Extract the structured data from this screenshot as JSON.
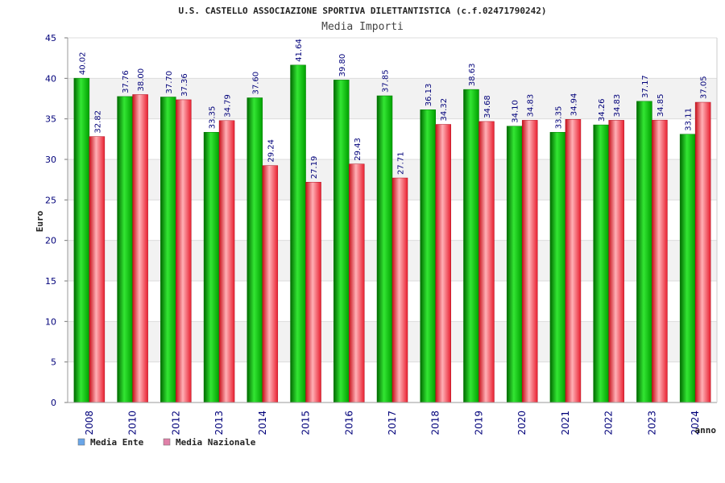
{
  "chart_data": {
    "type": "bar",
    "title": "U.S. CASTELLO ASSOCIAZIONE SPORTIVA DILETTANTISTICA (c.f.02471790242)",
    "subtitle": "Media Importi",
    "xlabel": "anno",
    "ylabel": "Euro",
    "ylim": [
      0,
      45
    ],
    "yticks": [
      0,
      5,
      10,
      15,
      20,
      25,
      30,
      35,
      40,
      45
    ],
    "grid": true,
    "legend_position": "bottom-left",
    "categories": [
      "2008",
      "2010",
      "2012",
      "2013",
      "2014",
      "2015",
      "2016",
      "2017",
      "2018",
      "2019",
      "2020",
      "2021",
      "2022",
      "2023",
      "2024"
    ],
    "series": [
      {
        "name": "Media Ente",
        "color": "#00b400",
        "legend_color": "#6aa6e8",
        "values": [
          40.02,
          37.76,
          37.7,
          33.35,
          37.6,
          41.64,
          39.8,
          37.85,
          36.13,
          38.63,
          34.1,
          33.35,
          34.26,
          37.17,
          33.11
        ],
        "labels": [
          "40.02",
          "37.76",
          "37.70",
          "33.35",
          "37.60",
          "41.64",
          "39.80",
          "37.85",
          "36.13",
          "38.63",
          "34.10",
          "33.35",
          "34.26",
          "37.17",
          "33.11"
        ]
      },
      {
        "name": "Media Nazionale",
        "color": "#e8202a",
        "legend_color": "#e080a8",
        "values": [
          32.82,
          38.0,
          37.36,
          34.79,
          29.24,
          27.19,
          29.43,
          27.71,
          34.32,
          34.68,
          34.83,
          34.94,
          34.83,
          34.85,
          37.05
        ],
        "labels": [
          "32.82",
          "38.00",
          "37.36",
          "34.79",
          "29.24",
          "27.19",
          "29.43",
          "27.71",
          "34.32",
          "34.68",
          "34.83",
          "34.94",
          "34.83",
          "34.85",
          "37.05"
        ]
      }
    ]
  }
}
